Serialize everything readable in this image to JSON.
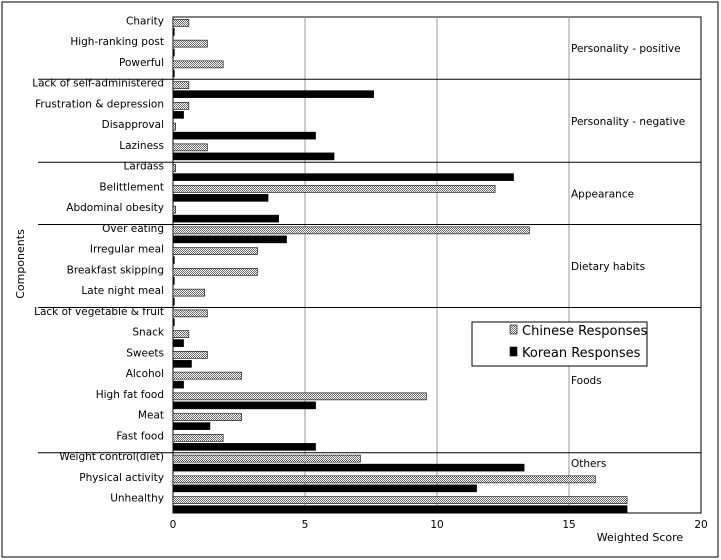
{
  "chart_data": {
    "type": "bar",
    "orientation": "horizontal",
    "xlabel": "Weighted Score",
    "ylabel": "Components",
    "xlim": [
      0,
      20
    ],
    "xticks": [
      0,
      5,
      10,
      15,
      20
    ],
    "grid": "vertical",
    "legend_position": "right",
    "series": [
      {
        "name": "Chinese Responses",
        "pattern": "dotted-gray"
      },
      {
        "name": "Korean Responses",
        "pattern": "solid-black"
      }
    ],
    "categories": [
      "Charity",
      "High-ranking post",
      "Powerful",
      "Lack of self-administered",
      "Frustration & depression",
      "Disapproval",
      "Laziness",
      "Lardass",
      "Belittlement",
      "Abdominal obesity",
      "Over eating",
      "Irregular meal",
      "Breakfast skipping",
      "Late night meal",
      "Lack of vegetable & fruit",
      "Snack",
      "Sweets",
      "Alcohol",
      "High fat food",
      "Meat",
      "Fast food",
      "Weight control(diet)",
      "Physical activity",
      "Unhealthy"
    ],
    "values": {
      "Chinese Responses": [
        0.6,
        1.3,
        1.9,
        0.6,
        0.6,
        0.1,
        1.3,
        0.1,
        12.2,
        0.1,
        13.5,
        3.2,
        3.2,
        1.2,
        1.3,
        0.6,
        1.3,
        2.6,
        9.6,
        2.6,
        1.9,
        7.1,
        16.0,
        17.2
      ],
      "Korean Responses": [
        0.05,
        0.05,
        0.05,
        7.6,
        0.4,
        5.4,
        6.1,
        12.9,
        3.6,
        4.0,
        4.3,
        0.05,
        0.05,
        0.05,
        0.05,
        0.4,
        0.7,
        0.4,
        5.4,
        1.4,
        5.4,
        13.3,
        11.5,
        17.2
      ]
    },
    "groups": [
      {
        "label": "Personality - positive",
        "count": 3
      },
      {
        "label": "Personality - negative",
        "count": 4
      },
      {
        "label": "Appearance",
        "count": 3
      },
      {
        "label": "Dietary habits",
        "count": 4
      },
      {
        "label": "Foods",
        "count": 7
      },
      {
        "label": "Others",
        "count": 3
      }
    ]
  }
}
